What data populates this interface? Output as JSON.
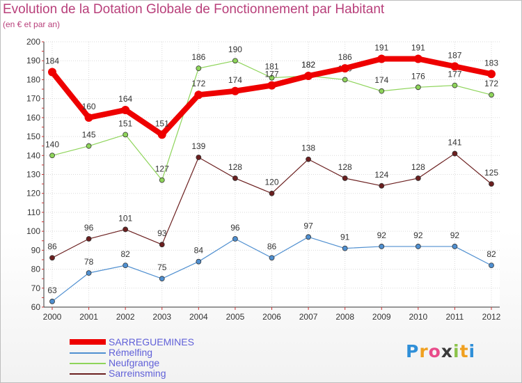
{
  "title": "Evolution de la Dotation Globale de Fonctionnement par Habitant",
  "subtitle": "(en € et par an)",
  "chart_data": {
    "type": "line",
    "categories": [
      "2000",
      "2001",
      "2002",
      "2003",
      "2004",
      "2005",
      "2006",
      "2007",
      "2008",
      "2009",
      "2010",
      "2011",
      "2012"
    ],
    "ylim": [
      60,
      200
    ],
    "yticks": [
      60,
      70,
      80,
      90,
      100,
      110,
      120,
      130,
      140,
      150,
      160,
      170,
      180,
      190,
      200
    ],
    "grid": true,
    "series": [
      {
        "name": "Sarreinsming",
        "color": "#6b1f1f",
        "values": [
          86,
          96,
          101,
          93,
          139,
          128,
          120,
          138,
          128,
          124,
          128,
          141,
          125
        ],
        "bold": false
      },
      {
        "name": "Neufgrange",
        "color": "#8ed45a",
        "values": [
          140,
          145,
          151,
          127,
          186,
          190,
          181,
          182,
          180,
          174,
          176,
          177,
          172
        ],
        "bold": false
      },
      {
        "name": "Rémelfing",
        "color": "#4f8fd0",
        "values": [
          63,
          78,
          82,
          75,
          84,
          96,
          86,
          97,
          91,
          92,
          92,
          92,
          82
        ],
        "bold": false
      },
      {
        "name": "SARREGUEMINES",
        "color": "#ee0000",
        "values": [
          184,
          160,
          164,
          151,
          172,
          174,
          177,
          182,
          186,
          191,
          191,
          187,
          183
        ],
        "bold": true
      }
    ]
  },
  "legend": [
    {
      "label": "SARREGUEMINES",
      "color": "#ee0000"
    },
    {
      "label": "Rémelfing",
      "color": "#4f8fd0"
    },
    {
      "label": "Neufgrange",
      "color": "#8ed45a"
    },
    {
      "label": "Sarreinsming",
      "color": "#6b1f1f"
    }
  ],
  "logo": {
    "letters": [
      "P",
      "r",
      "o",
      "x",
      "i",
      "t",
      "i"
    ],
    "colors": [
      "#2f8fd8",
      "#f0a020",
      "#e84b8a",
      "#3a3a3a",
      "#8bc34a",
      "#f0a020",
      "#2f8fd8"
    ]
  }
}
